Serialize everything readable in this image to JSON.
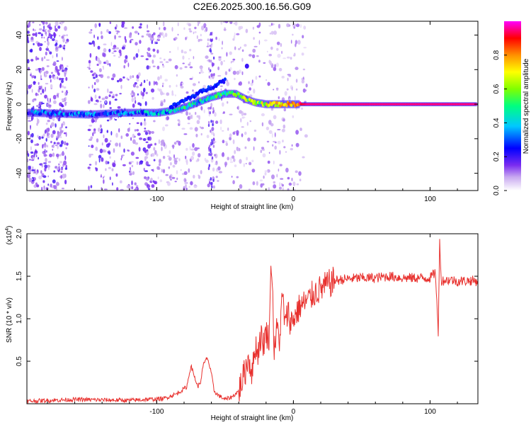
{
  "title": "C2E6.2025.300.16.56.G09",
  "chart_data": [
    {
      "type": "heatmap",
      "xlabel": "Height of straight line (km)",
      "ylabel": "Frequency (Hz)",
      "xlim": [
        -195,
        135
      ],
      "ylim": [
        -50,
        48
      ],
      "xticks": [
        -100,
        0,
        100
      ],
      "yticks": [
        -40,
        -20,
        0,
        20,
        40
      ],
      "colorbar": {
        "label": "Normalized spectral amplitude",
        "range": [
          0,
          1
        ],
        "ticks": [
          "0.0",
          "0.2",
          "0.4",
          "0.6",
          "0.8"
        ],
        "colors": [
          "#ffffff",
          "#c8a8f0",
          "#7a2cf0",
          "#0000ff",
          "#00c8ff",
          "#00ff80",
          "#80ff00",
          "#ffff00",
          "#ff9000",
          "#ff0000",
          "#ff00ff"
        ]
      },
      "track": {
        "x": [
          -190,
          -150,
          -125,
          -100,
          -90,
          -80,
          -70,
          -60,
          -50,
          -42,
          -35,
          -28,
          -20,
          -10,
          0,
          5,
          10,
          135
        ],
        "y": [
          -5,
          -6,
          -5,
          -5,
          -4,
          -2,
          1,
          4,
          6,
          6,
          3,
          1,
          0,
          0,
          0,
          0,
          0,
          0
        ]
      },
      "track_amplitude": [
        0.3,
        0.3,
        0.3,
        0.35,
        0.4,
        0.45,
        0.4,
        0.45,
        0.5,
        0.55,
        0.6,
        0.6,
        0.65,
        0.7,
        0.8,
        0.9,
        0.95,
        0.95
      ]
    },
    {
      "type": "line",
      "xlabel": "Height of straight line (km)",
      "ylabel": "SNR (10 * v/v)",
      "y_multiplier": "(x10",
      "y_multiplier_exp": "4",
      "y_multiplier_close": ")",
      "xlim": [
        -195,
        135
      ],
      "ylim": [
        0,
        2.0
      ],
      "xticks": [
        -100,
        0,
        100
      ],
      "yticks": [
        0.5,
        1.0,
        1.5,
        2.0
      ],
      "ytick_labels": [
        "0.5",
        "1.0",
        "1.5",
        "2.0"
      ],
      "color": "#e8312e",
      "series": [
        {
          "name": "SNR",
          "x": [
            -195,
            -160,
            -120,
            -95,
            -85,
            -78,
            -75,
            -72,
            -70,
            -68,
            -66,
            -63,
            -60,
            -58,
            -55,
            -50,
            -45,
            -40,
            -35,
            -33,
            -30,
            -28,
            -26,
            -24,
            -22,
            -20,
            -18,
            -16,
            -14,
            -12,
            -10,
            -8,
            -6,
            -4,
            -2,
            0,
            5,
            10,
            15,
            20,
            25,
            30,
            40,
            50,
            60,
            70,
            80,
            90,
            100,
            104,
            106,
            107,
            108,
            110,
            115,
            120,
            130,
            135
          ],
          "y": [
            0.03,
            0.05,
            0.04,
            0.06,
            0.12,
            0.2,
            0.45,
            0.3,
            0.2,
            0.25,
            0.45,
            0.55,
            0.35,
            0.15,
            0.1,
            0.05,
            0.08,
            0.15,
            0.4,
            0.55,
            0.35,
            0.7,
            0.6,
            0.8,
            0.7,
            0.85,
            0.75,
            1.75,
            0.6,
            0.9,
            0.75,
            1.3,
            0.9,
            1.1,
            0.95,
            1.0,
            1.15,
            1.2,
            1.3,
            1.35,
            1.4,
            1.45,
            1.47,
            1.48,
            1.48,
            1.5,
            1.48,
            1.48,
            1.48,
            1.55,
            0.8,
            2.0,
            1.45,
            1.45,
            1.46,
            1.44,
            1.45,
            1.44
          ]
        }
      ]
    }
  ]
}
